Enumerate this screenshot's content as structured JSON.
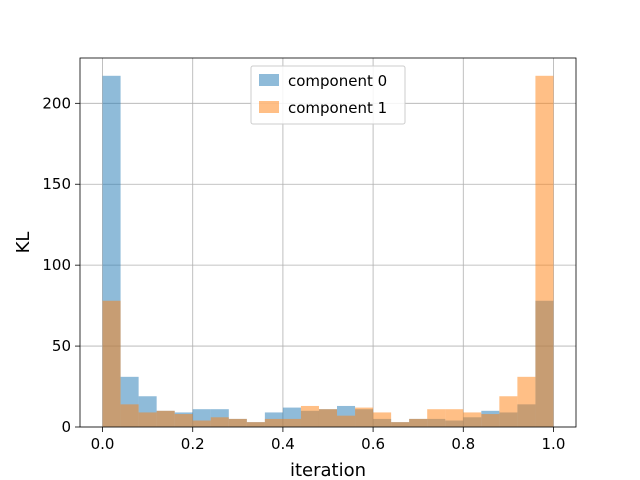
{
  "chart_data": {
    "type": "bar",
    "title": "",
    "xlabel": "iteration",
    "ylabel": "KL",
    "xlim": [
      -0.05,
      1.05
    ],
    "ylim": [
      0,
      228
    ],
    "xticks": [
      0.0,
      0.2,
      0.4,
      0.6,
      0.8,
      1.0
    ],
    "xtick_labels": [
      "0.0",
      "0.2",
      "0.4",
      "0.6",
      "0.8",
      "1.0"
    ],
    "yticks": [
      0,
      50,
      100,
      150,
      200
    ],
    "ytick_labels": [
      "0",
      "50",
      "100",
      "150",
      "200"
    ],
    "grid": true,
    "legend_position": "upper center",
    "bin_edges": [
      0.0,
      0.04,
      0.08,
      0.12,
      0.16,
      0.2,
      0.24,
      0.28,
      0.32,
      0.36,
      0.4,
      0.44,
      0.48,
      0.52,
      0.56,
      0.6,
      0.64,
      0.68,
      0.72,
      0.76,
      0.8,
      0.84,
      0.88,
      0.92,
      0.96,
      1.0
    ],
    "series": [
      {
        "name": "component 0",
        "color": "#1f77b4",
        "values": [
          217,
          31,
          19,
          10,
          9,
          11,
          11,
          5,
          3,
          9,
          12,
          10,
          11,
          13,
          11,
          5,
          3,
          5,
          5,
          4,
          6,
          10,
          9,
          14,
          78
        ]
      },
      {
        "name": "component 1",
        "color": "#ff7f0e",
        "values": [
          78,
          14,
          9,
          10,
          8,
          4,
          6,
          5,
          3,
          5,
          5,
          13,
          11,
          7,
          12,
          9,
          3,
          5,
          11,
          11,
          9,
          8,
          19,
          31,
          217
        ]
      }
    ]
  }
}
